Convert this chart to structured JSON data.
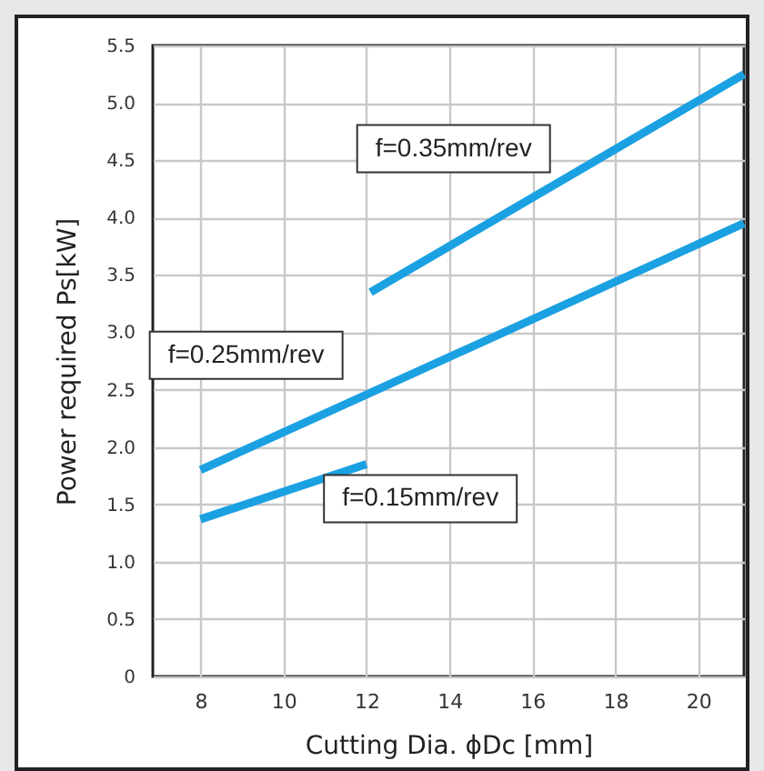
{
  "chart_data": {
    "type": "line",
    "xlabel": "Cutting Dia. ϕDc [mm]",
    "ylabel": "Power required Ps[kW]",
    "xlim": [
      6.85,
      21.1
    ],
    "xticks": [
      8,
      10,
      12,
      14,
      16,
      18,
      20
    ],
    "ylim": [
      0,
      5.5
    ],
    "yticks": [
      0,
      {
        "value": 0.5,
        "label": "0.5"
      },
      {
        "value": 1,
        "label": "1.0"
      },
      {
        "value": 1.5,
        "label": "1.5"
      },
      {
        "value": 2,
        "label": "2.0"
      },
      {
        "value": 2.5,
        "label": "2.5"
      },
      {
        "value": 3,
        "label": "3.0"
      },
      {
        "value": 3.5,
        "label": "3.5"
      },
      {
        "value": 4,
        "label": "4.0"
      },
      {
        "value": 4.5,
        "label": "4.5"
      },
      {
        "value": 5,
        "label": "5.0"
      },
      {
        "value": 5.5,
        "label": "5.5"
      }
    ],
    "grid": true,
    "legend": false,
    "series": [
      {
        "name": "f=0.15mm/rev",
        "color": "#1ba1e2",
        "x": [
          8,
          12
        ],
        "values": [
          1.37,
          1.85
        ]
      },
      {
        "name": "f=0.25mm/rev",
        "color": "#1ba1e2",
        "x": [
          8,
          21.1
        ],
        "values": [
          1.8,
          3.95
        ]
      },
      {
        "name": "f=0.35mm/rev",
        "color": "#1ba1e2",
        "x": [
          12.1,
          21.1
        ],
        "values": [
          3.35,
          5.25
        ]
      }
    ]
  }
}
